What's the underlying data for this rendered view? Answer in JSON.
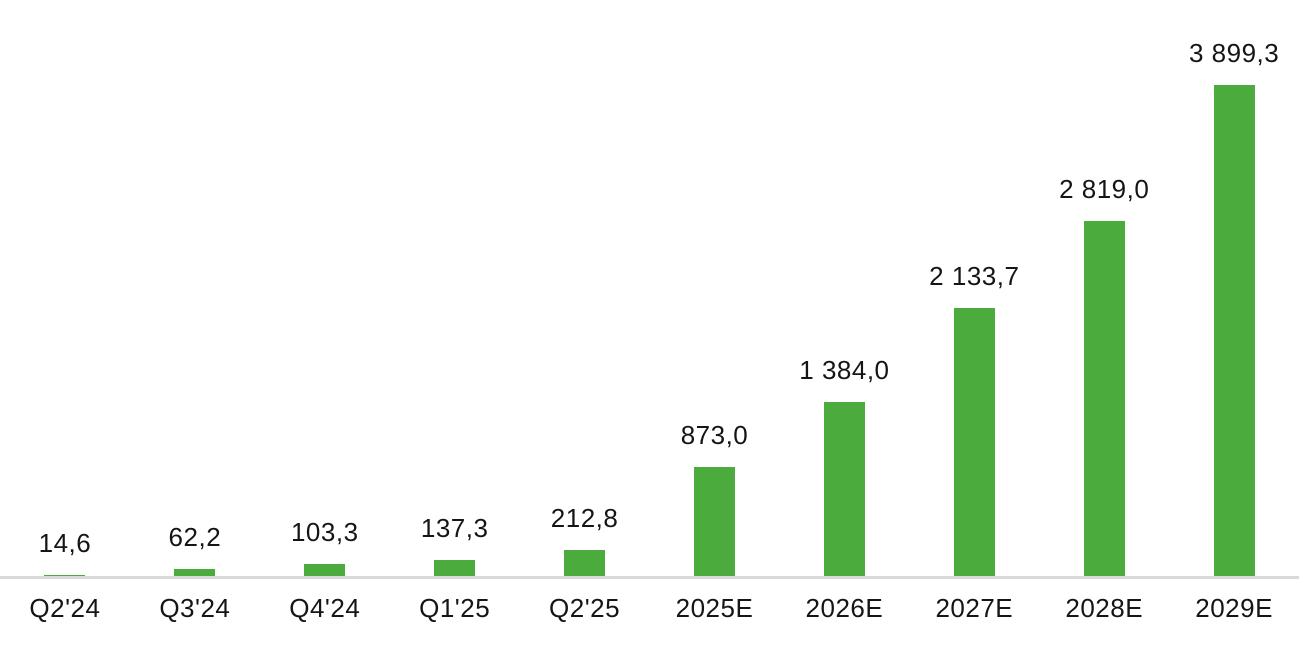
{
  "chart_data": {
    "type": "bar",
    "title": "",
    "xlabel": "",
    "ylabel": "",
    "categories": [
      "Q2'24",
      "Q3'24",
      "Q4'24",
      "Q1'25",
      "Q2'25",
      "2025E",
      "2026E",
      "2027E",
      "2028E",
      "2029E"
    ],
    "values": [
      14.6,
      62.2,
      103.3,
      137.3,
      212.8,
      873.0,
      1384.0,
      2133.7,
      2819.0,
      3899.3
    ],
    "value_labels": [
      "14,6",
      "62,2",
      "103,3",
      "137,3",
      "212,8",
      "873,0",
      "1 384,0",
      "2 133,7",
      "2 819,0",
      "3 899,3"
    ],
    "ylim": [
      0,
      3899.3
    ],
    "grid": false,
    "legend": "none",
    "number_format": "european (space thousands, comma decimals)",
    "colors": {
      "bar": "#4bac3d",
      "axis_line": "#d9d9d9",
      "label_text": "#151515",
      "background": "#ffffff"
    }
  }
}
